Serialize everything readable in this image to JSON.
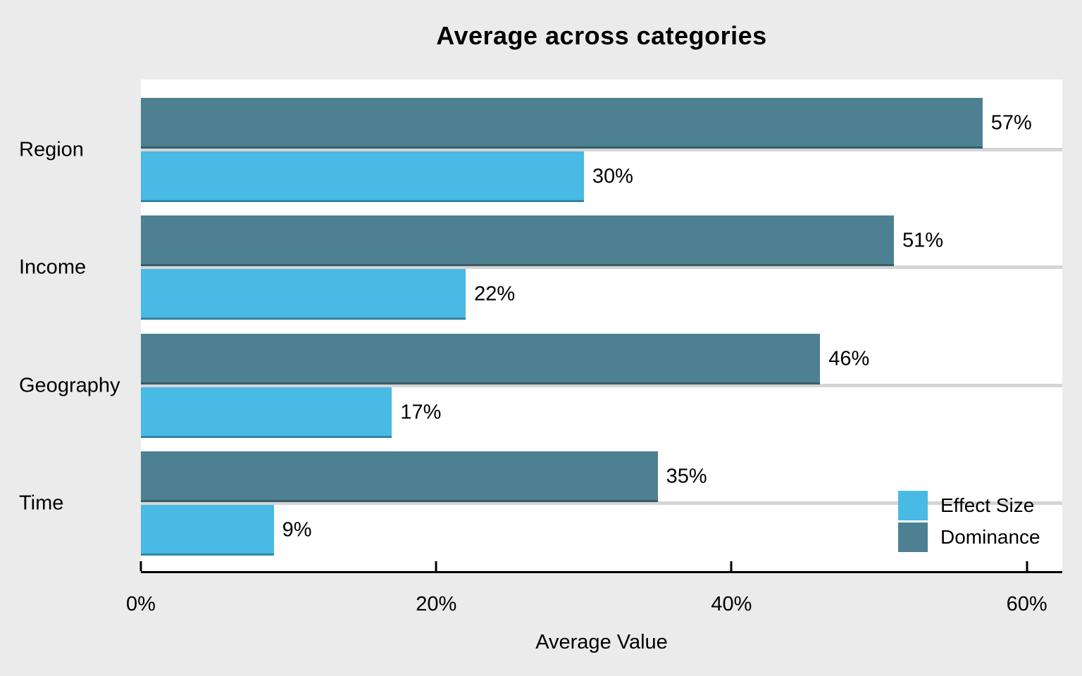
{
  "chart_data": {
    "type": "bar",
    "orientation": "horizontal",
    "title": "Average across categories",
    "xlabel": "Average Value",
    "categories": [
      "Region",
      "Income",
      "Geography",
      "Time"
    ],
    "series": [
      {
        "name": "Effect Size",
        "color": "#48BAE3",
        "values": [
          30,
          22,
          17,
          9
        ]
      },
      {
        "name": "Dominance",
        "color": "#4D8191",
        "values": [
          57,
          51,
          46,
          35
        ]
      }
    ],
    "value_unit": "%",
    "x_ticks": [
      {
        "value": 0,
        "label": "0%"
      },
      {
        "value": 20,
        "label": "20%"
      },
      {
        "value": 40,
        "label": "40%"
      },
      {
        "value": 60,
        "label": "60%"
      }
    ],
    "xlim": [
      0,
      62.4
    ],
    "grid": "horizontal-category-centers",
    "legend": {
      "position": "bottom-right",
      "entries": [
        "Effect Size",
        "Dominance"
      ]
    },
    "colors": {
      "background": "#EBEBEB",
      "panel": "#FFFFFF",
      "gridline": "#D5D5D5",
      "axis": "#000000"
    }
  }
}
